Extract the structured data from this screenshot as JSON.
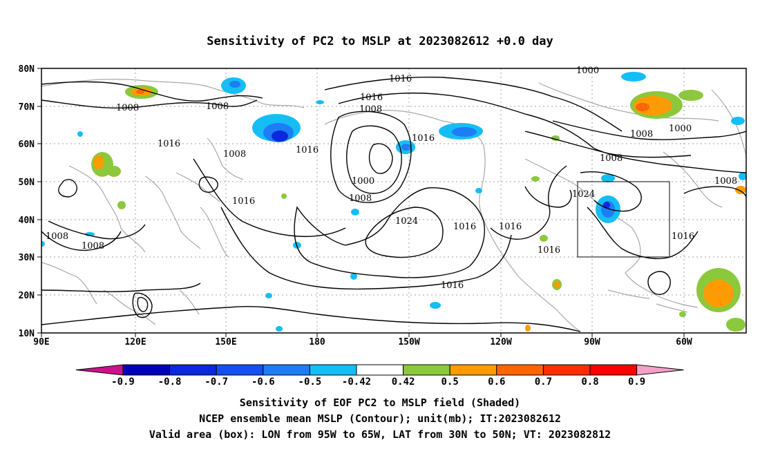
{
  "title": "Sensitivity of PC2 to MSLP at 2023082612 +0.0 day",
  "lat_labels": [
    "80N",
    "70N",
    "60N",
    "50N",
    "40N",
    "30N",
    "20N",
    "10N"
  ],
  "lon_labels": [
    "90E",
    "120E",
    "150E",
    "180",
    "150W",
    "120W",
    "90W",
    "60W"
  ],
  "isobar_labels": [
    "1016",
    "1016",
    "1008",
    "1008",
    "1008",
    "1008",
    "1016",
    "1016",
    "1008",
    "1008",
    "1000",
    "1008",
    "1016",
    "1024",
    "1016",
    "1016",
    "1016",
    "1016",
    "1016",
    "1024",
    "1016",
    "1000",
    "1008",
    "1000",
    "1008",
    "1008"
  ],
  "colorbar": {
    "labels": [
      "-0.9",
      "-0.8",
      "-0.7",
      "-0.6",
      "-0.5",
      "-0.42",
      "0.42",
      "0.5",
      "0.6",
      "0.7",
      "0.8",
      "0.9"
    ],
    "colors": [
      "#0000b4",
      "#0a28dc",
      "#1450f0",
      "#1e7df5",
      "#14bef5",
      "#ffffff",
      "#8cc83c",
      "#ff9b00",
      "#ff6400",
      "#ff2d00",
      "#ff0000"
    ],
    "low_end_color": "#c8148c",
    "high_end_color": "#f5a0c8"
  },
  "valid_area": {
    "lon_from": "95W",
    "lon_to": "65W",
    "lat_from": "30N",
    "lat_to": "50N"
  },
  "footer": {
    "line1": "Sensitivity of EOF PC2 to MSLP field (Shaded)",
    "line2": "NCEP ensemble mean MSLP (Contour); unit(mb); IT:2023082612",
    "line3": "Valid area (box): LON from 95W to 65W, LAT from 30N to 50N; VT: 2023082812"
  }
}
